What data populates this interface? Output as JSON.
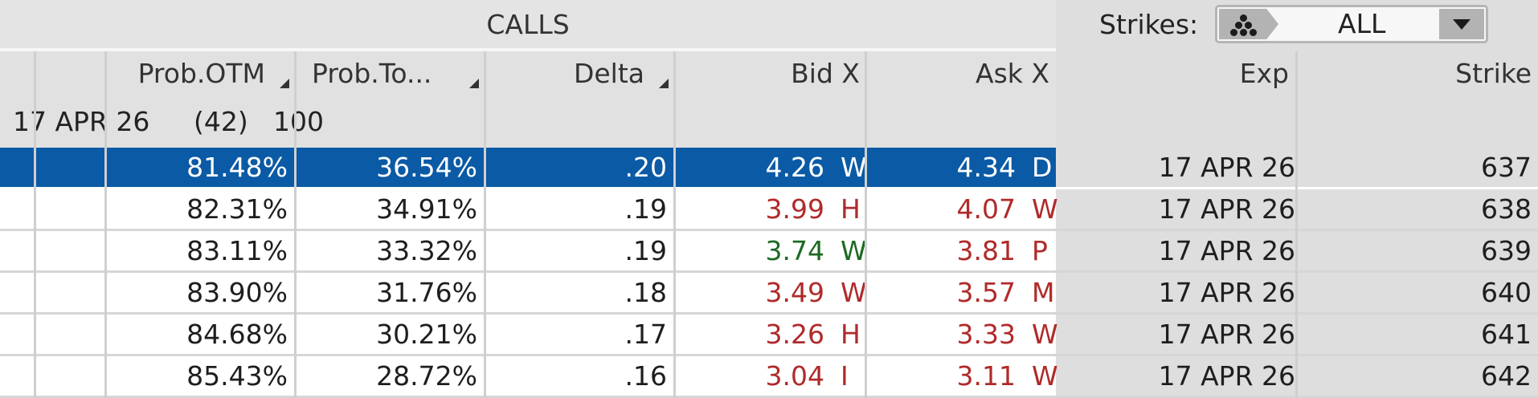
{
  "section_title": "CALLS",
  "strikes_filter": {
    "label": "Strikes:",
    "value": "ALL"
  },
  "columns": {
    "prob_otm": "Prob.OTM",
    "prob_touch": "Prob.To...",
    "delta": "Delta",
    "bid": "Bid X",
    "ask": "Ask X",
    "exp": "Exp",
    "strike": "Strike"
  },
  "group": {
    "expiration": "17 APR 26",
    "days": "(42)",
    "multiplier": "100"
  },
  "colors": {
    "selected_row": "#0b5aa5",
    "down": "#b02a2a",
    "up": "#1c6a22"
  },
  "rows": [
    {
      "prob_otm": "81.48%",
      "prob_touch": "36.54%",
      "delta": ".20",
      "bid": "4.26",
      "bid_exch": "W",
      "bid_color": "norm",
      "ask": "4.34",
      "ask_exch": "D",
      "ask_color": "norm",
      "exp": "17 APR 26",
      "strike": "637",
      "selected": true
    },
    {
      "prob_otm": "82.31%",
      "prob_touch": "34.91%",
      "delta": ".19",
      "bid": "3.99",
      "bid_exch": "H",
      "bid_color": "red",
      "ask": "4.07",
      "ask_exch": "W",
      "ask_color": "red",
      "exp": "17 APR 26",
      "strike": "638",
      "selected": false
    },
    {
      "prob_otm": "83.11%",
      "prob_touch": "33.32%",
      "delta": ".19",
      "bid": "3.74",
      "bid_exch": "W",
      "bid_color": "green",
      "ask": "3.81",
      "ask_exch": "P",
      "ask_color": "red",
      "exp": "17 APR 26",
      "strike": "639",
      "selected": false
    },
    {
      "prob_otm": "83.90%",
      "prob_touch": "31.76%",
      "delta": ".18",
      "bid": "3.49",
      "bid_exch": "W",
      "bid_color": "red",
      "ask": "3.57",
      "ask_exch": "M",
      "ask_color": "red",
      "exp": "17 APR 26",
      "strike": "640",
      "selected": false
    },
    {
      "prob_otm": "84.68%",
      "prob_touch": "30.21%",
      "delta": ".17",
      "bid": "3.26",
      "bid_exch": "H",
      "bid_color": "red",
      "ask": "3.33",
      "ask_exch": "W",
      "ask_color": "red",
      "exp": "17 APR 26",
      "strike": "641",
      "selected": false
    },
    {
      "prob_otm": "85.43%",
      "prob_touch": "28.72%",
      "delta": ".16",
      "bid": "3.04",
      "bid_exch": "I",
      "bid_color": "red",
      "ask": "3.11",
      "ask_exch": "W",
      "ask_color": "red",
      "exp": "17 APR 26",
      "strike": "642",
      "selected": false
    }
  ]
}
